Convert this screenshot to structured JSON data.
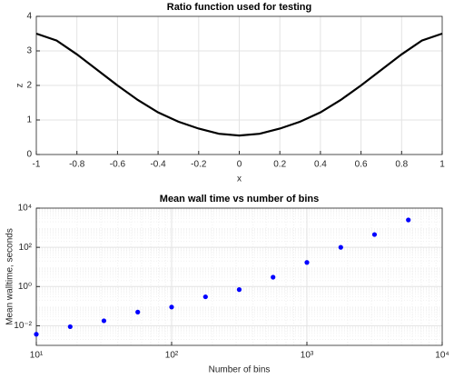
{
  "chart_data": [
    {
      "type": "line",
      "title": "Ratio function used for testing",
      "xlabel": "x",
      "ylabel": "z",
      "x": [
        -1,
        -0.9,
        -0.8,
        -0.7,
        -0.6,
        -0.5,
        -0.4,
        -0.3,
        -0.2,
        -0.1,
        0,
        0.1,
        0.2,
        0.3,
        0.4,
        0.5,
        0.6,
        0.7,
        0.8,
        0.9,
        1
      ],
      "y": [
        3.5,
        3.3,
        2.9,
        2.45,
        2.0,
        1.58,
        1.22,
        0.95,
        0.75,
        0.6,
        0.55,
        0.6,
        0.75,
        0.95,
        1.22,
        1.58,
        2.0,
        2.45,
        2.9,
        3.3,
        3.5
      ],
      "color": "#000000",
      "xlim": [
        -1,
        1
      ],
      "xticks": [
        -1,
        -0.8,
        -0.6,
        -0.4,
        -0.2,
        0,
        0.2,
        0.4,
        0.6,
        0.8,
        1
      ],
      "ylim": [
        0,
        4
      ],
      "yticks": [
        0,
        1,
        2,
        3,
        4
      ],
      "grid": true
    },
    {
      "type": "scatter",
      "title": "Mean wall time vs number of bins",
      "xlabel": "Number of bins",
      "ylabel": "Mean walltime, seconds",
      "x": [
        10,
        17.8,
        31.6,
        56.2,
        100,
        178,
        316,
        562,
        1000,
        1780,
        3160,
        5620
      ],
      "y": [
        0.0037,
        0.009,
        0.018,
        0.05,
        0.09,
        0.3,
        0.7,
        3,
        17,
        100,
        450,
        2500
      ],
      "color": "#0000ff",
      "xscale": "log",
      "yscale": "log",
      "xlim": [
        10,
        10000
      ],
      "xticks": [
        {
          "value": 10,
          "label": "10¹"
        },
        {
          "value": 100,
          "label": "10²"
        },
        {
          "value": 1000,
          "label": "10³"
        },
        {
          "value": 10000,
          "label": "10⁴"
        }
      ],
      "ylim": [
        0.001,
        10000
      ],
      "yticks": [
        {
          "value": 0.01,
          "label": "10⁻²"
        },
        {
          "value": 1,
          "label": "10⁰"
        },
        {
          "value": 100,
          "label": "10²"
        },
        {
          "value": 10000,
          "label": "10⁴"
        }
      ],
      "grid": true
    }
  ]
}
